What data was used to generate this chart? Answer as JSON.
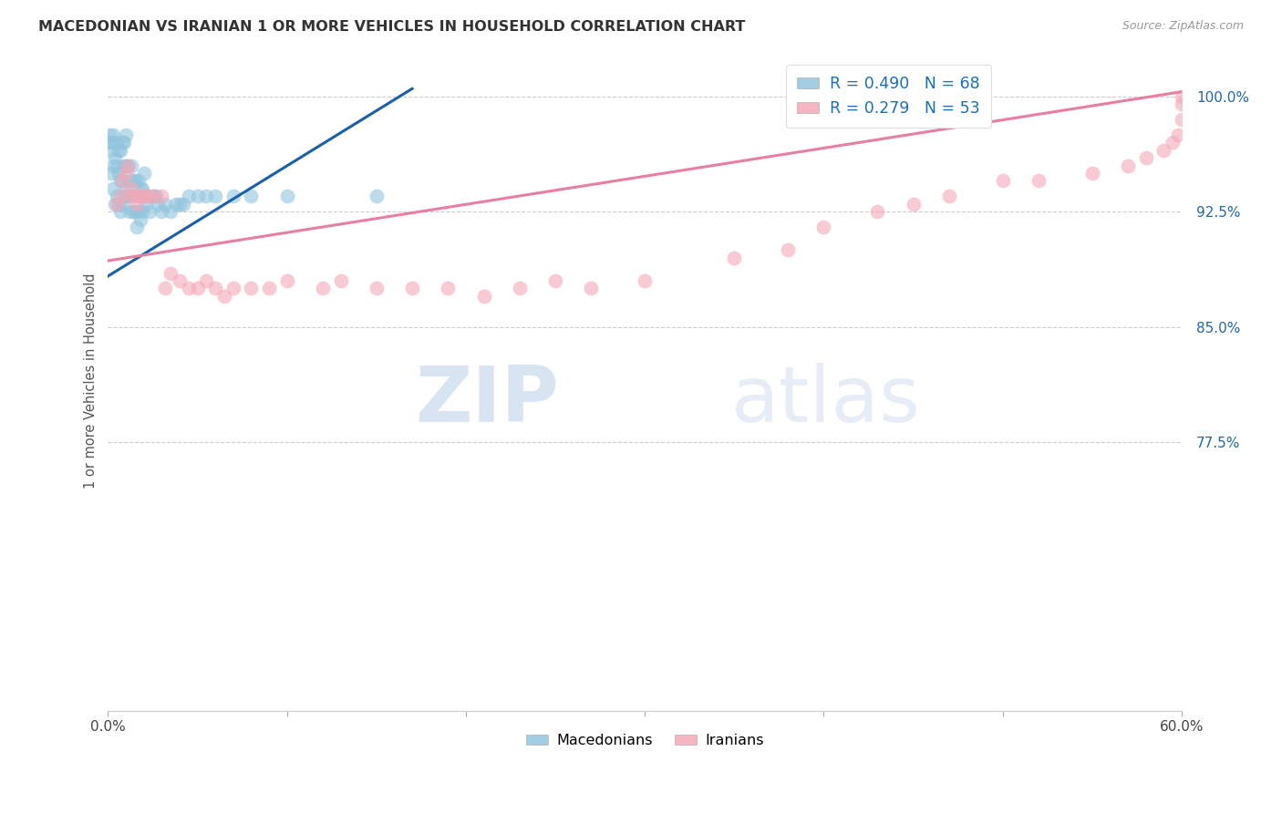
{
  "title": "MACEDONIAN VS IRANIAN 1 OR MORE VEHICLES IN HOUSEHOLD CORRELATION CHART",
  "source": "Source: ZipAtlas.com",
  "ylabel": "1 or more Vehicles in Household",
  "ytick_labels": [
    "100.0%",
    "92.5%",
    "85.0%",
    "77.5%"
  ],
  "ytick_values": [
    1.0,
    0.925,
    0.85,
    0.775
  ],
  "xmin": 0.0,
  "xmax": 0.6,
  "ymin": 0.6,
  "ymax": 1.03,
  "legend_macedonian": "R = 0.490   N = 68",
  "legend_iranian": "R = 0.279   N = 53",
  "macedonian_color": "#92c5de",
  "iranian_color": "#f4a9b8",
  "trendline_macedonian_color": "#1a5fa8",
  "trendline_iranian_color": "#e87fa0",
  "watermark_zip": "ZIP",
  "watermark_atlas": "atlas",
  "mac_x": [
    0.001,
    0.001,
    0.002,
    0.002,
    0.002,
    0.003,
    0.003,
    0.003,
    0.004,
    0.004,
    0.005,
    0.005,
    0.005,
    0.006,
    0.006,
    0.006,
    0.007,
    0.007,
    0.007,
    0.008,
    0.008,
    0.008,
    0.009,
    0.009,
    0.009,
    0.01,
    0.01,
    0.01,
    0.011,
    0.011,
    0.012,
    0.012,
    0.013,
    0.013,
    0.014,
    0.014,
    0.015,
    0.015,
    0.016,
    0.016,
    0.017,
    0.017,
    0.018,
    0.018,
    0.019,
    0.019,
    0.02,
    0.02,
    0.021,
    0.022,
    0.023,
    0.025,
    0.027,
    0.028,
    0.03,
    0.032,
    0.035,
    0.038,
    0.04,
    0.042,
    0.045,
    0.05,
    0.055,
    0.06,
    0.07,
    0.08,
    0.1,
    0.15
  ],
  "mac_y": [
    0.97,
    0.975,
    0.95,
    0.965,
    0.97,
    0.94,
    0.955,
    0.975,
    0.93,
    0.96,
    0.935,
    0.955,
    0.97,
    0.93,
    0.95,
    0.965,
    0.925,
    0.945,
    0.965,
    0.93,
    0.945,
    0.97,
    0.935,
    0.955,
    0.97,
    0.94,
    0.955,
    0.975,
    0.935,
    0.955,
    0.925,
    0.945,
    0.935,
    0.955,
    0.925,
    0.945,
    0.925,
    0.945,
    0.915,
    0.935,
    0.925,
    0.945,
    0.92,
    0.94,
    0.925,
    0.94,
    0.935,
    0.95,
    0.93,
    0.935,
    0.925,
    0.935,
    0.935,
    0.93,
    0.925,
    0.93,
    0.925,
    0.93,
    0.93,
    0.93,
    0.935,
    0.935,
    0.935,
    0.935,
    0.935,
    0.935,
    0.935,
    0.935
  ],
  "iran_x": [
    0.005,
    0.007,
    0.008,
    0.01,
    0.011,
    0.012,
    0.013,
    0.015,
    0.016,
    0.018,
    0.02,
    0.022,
    0.025,
    0.03,
    0.032,
    0.035,
    0.04,
    0.045,
    0.05,
    0.055,
    0.06,
    0.065,
    0.07,
    0.08,
    0.09,
    0.1,
    0.12,
    0.13,
    0.15,
    0.17,
    0.19,
    0.21,
    0.23,
    0.25,
    0.27,
    0.3,
    0.35,
    0.38,
    0.4,
    0.43,
    0.45,
    0.47,
    0.5,
    0.52,
    0.55,
    0.57,
    0.58,
    0.59,
    0.595,
    0.598,
    0.6,
    0.6,
    0.6
  ],
  "iran_y": [
    0.93,
    0.935,
    0.945,
    0.95,
    0.955,
    0.935,
    0.94,
    0.935,
    0.93,
    0.935,
    0.935,
    0.935,
    0.935,
    0.935,
    0.875,
    0.885,
    0.88,
    0.875,
    0.875,
    0.88,
    0.875,
    0.87,
    0.875,
    0.875,
    0.875,
    0.88,
    0.875,
    0.88,
    0.875,
    0.875,
    0.875,
    0.87,
    0.875,
    0.88,
    0.875,
    0.88,
    0.895,
    0.9,
    0.915,
    0.925,
    0.93,
    0.935,
    0.945,
    0.945,
    0.95,
    0.955,
    0.96,
    0.965,
    0.97,
    0.975,
    0.985,
    0.995,
    1.0
  ]
}
